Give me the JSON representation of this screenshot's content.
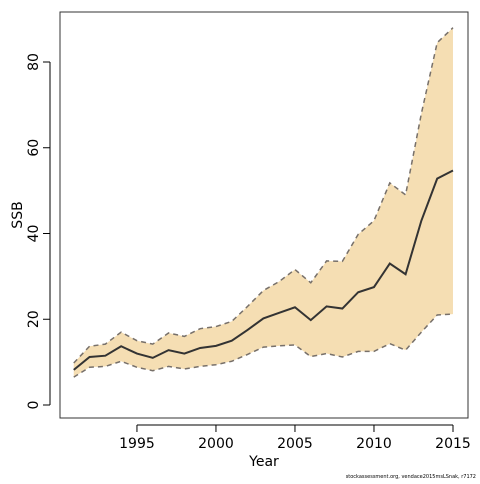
{
  "chart_data": {
    "type": "line",
    "xlabel": "Year",
    "ylabel": "SSB",
    "footnote": "stockassessment.org, vendace2015msLSnak, r7172",
    "x": [
      1991,
      1992,
      1993,
      1994,
      1995,
      1996,
      1997,
      1998,
      1999,
      2000,
      2001,
      2002,
      2003,
      2004,
      2005,
      2006,
      2007,
      2008,
      2009,
      2010,
      2011,
      2012,
      2013,
      2014,
      2015
    ],
    "values": [
      8.2,
      11.2,
      11.5,
      13.7,
      12,
      11,
      12.8,
      12,
      13.3,
      13.8,
      15,
      17.5,
      20.2,
      21.5,
      22.8,
      19.8,
      23,
      22.5,
      26.3,
      27.5,
      33,
      30.5,
      43,
      52.8,
      54.7
    ],
    "upper": [
      9.8,
      13.7,
      14.2,
      17,
      15,
      14.2,
      16.8,
      16,
      17.8,
      18.3,
      19.5,
      23,
      26.7,
      28.8,
      31.6,
      28.5,
      33.6,
      33.5,
      39.8,
      43,
      51.8,
      49,
      68,
      84.5,
      88
    ],
    "lower": [
      6.5,
      8.8,
      9,
      10.2,
      8.8,
      8,
      9,
      8.4,
      9,
      9.4,
      10.2,
      11.8,
      13.5,
      13.8,
      14,
      11.3,
      12,
      11.2,
      12.5,
      12.5,
      14.3,
      12.8,
      17,
      21,
      21.2
    ],
    "color": "#333333",
    "band_color": "#f5deb3",
    "band_line_color": "#77706a",
    "xlim": [
      1990.13,
      2015.95
    ],
    "ylim": [
      -3.03,
      91.66
    ],
    "xticks": [
      1995,
      2000,
      2005,
      2010,
      2015
    ],
    "yticks": [
      0,
      20,
      40,
      60,
      80
    ]
  }
}
